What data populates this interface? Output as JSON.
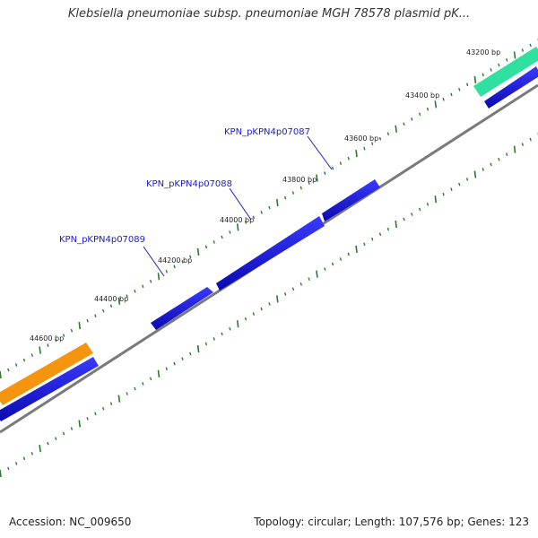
{
  "title": "Klebsiella pneumoniae subsp. pneumoniae MGH 78578 plasmid pK...",
  "footer": {
    "accession": "Accession: NC_009650",
    "stats": "Topology: circular; Length: 107,576 bp; Genes: 123"
  },
  "colors": {
    "backbone": "#7a7a7a",
    "cds": "#1414dc",
    "orange_feature": "#f5950f",
    "teal_feature": "#2fe0a0",
    "tick": "#2a7a2a",
    "label": "#1a1adb"
  },
  "position_labels": [
    "43200 bp",
    "43400 bp",
    "43600 bp",
    "43800 bp",
    "44000 bp",
    "44200 bp",
    "44400 bp",
    "44600 bp"
  ],
  "gene_labels": [
    "KPN_pKPN4p07087",
    "KPN_pKPN4p07088",
    "KPN_pKPN4p07089"
  ]
}
